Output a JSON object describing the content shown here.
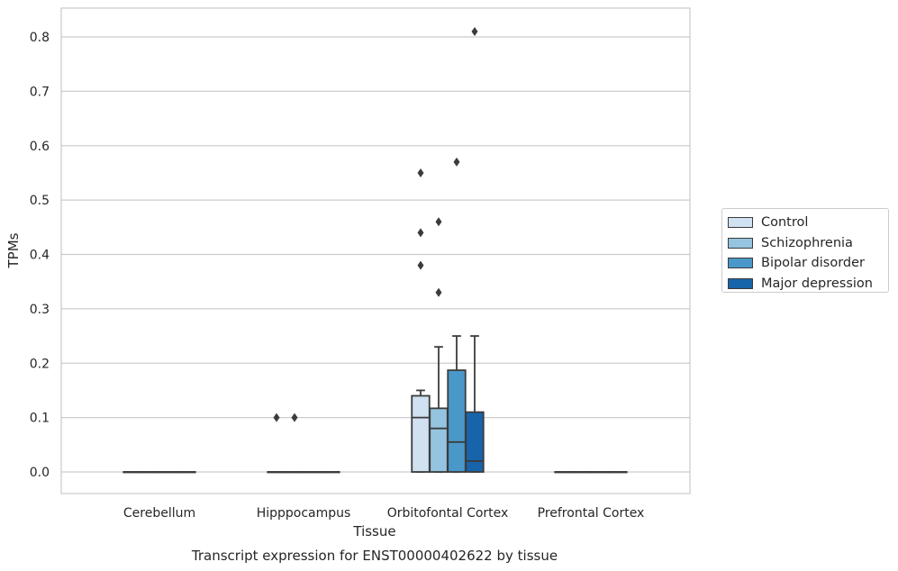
{
  "chart_data": {
    "type": "box",
    "title": "Transcript expression for ENST00000402622 by tissue",
    "xlabel": "Tissue",
    "ylabel": "TPMs",
    "ylim": [
      -0.04,
      0.86
    ],
    "yticks": [
      0.0,
      0.1,
      0.2,
      0.3,
      0.4,
      0.5,
      0.6,
      0.7,
      0.8
    ],
    "ytick_labels": [
      "0.0",
      "0.1",
      "0.2",
      "0.3",
      "0.4",
      "0.5",
      "0.6",
      "0.7",
      "0.8"
    ],
    "categories": [
      "Cerebellum",
      "Hipppocampus",
      "Orbitofontal Cortex",
      "Prefrontal Cortex"
    ],
    "grid": true,
    "legend_position": "right",
    "series": [
      {
        "name": "Control",
        "color": "#d0e1f2",
        "boxes": [
          {
            "min": 0,
            "q1": 0,
            "median": 0,
            "q3": 0,
            "max": 0,
            "outliers": []
          },
          {
            "min": 0,
            "q1": 0,
            "median": 0,
            "q3": 0,
            "max": 0,
            "outliers": [
              0.1
            ]
          },
          {
            "min": 0,
            "q1": 0,
            "median": 0.1,
            "q3": 0.14,
            "max": 0.15,
            "outliers": [
              0.55,
              0.44,
              0.38
            ]
          },
          {
            "min": 0,
            "q1": 0,
            "median": 0,
            "q3": 0,
            "max": 0,
            "outliers": []
          }
        ]
      },
      {
        "name": "Schizophrenia",
        "color": "#94c4df",
        "boxes": [
          {
            "min": 0,
            "q1": 0,
            "median": 0,
            "q3": 0,
            "max": 0,
            "outliers": []
          },
          {
            "min": 0,
            "q1": 0,
            "median": 0,
            "q3": 0,
            "max": 0,
            "outliers": [
              0.1
            ]
          },
          {
            "min": 0,
            "q1": 0,
            "median": 0.08,
            "q3": 0.117,
            "max": 0.23,
            "outliers": [
              0.46,
              0.33
            ]
          },
          {
            "min": 0,
            "q1": 0,
            "median": 0,
            "q3": 0,
            "max": 0,
            "outliers": []
          }
        ]
      },
      {
        "name": "Bipolar disorder",
        "color": "#4a98c9",
        "boxes": [
          {
            "min": 0,
            "q1": 0,
            "median": 0,
            "q3": 0,
            "max": 0,
            "outliers": []
          },
          {
            "min": 0,
            "q1": 0,
            "median": 0,
            "q3": 0,
            "max": 0,
            "outliers": []
          },
          {
            "min": 0,
            "q1": 0,
            "median": 0.055,
            "q3": 0.187,
            "max": 0.25,
            "outliers": [
              0.57
            ]
          },
          {
            "min": 0,
            "q1": 0,
            "median": 0,
            "q3": 0,
            "max": 0,
            "outliers": []
          }
        ]
      },
      {
        "name": "Major depression",
        "color": "#1764ab",
        "boxes": [
          {
            "min": 0,
            "q1": 0,
            "median": 0,
            "q3": 0,
            "max": 0,
            "outliers": []
          },
          {
            "min": 0,
            "q1": 0,
            "median": 0,
            "q3": 0,
            "max": 0,
            "outliers": []
          },
          {
            "min": 0,
            "q1": 0,
            "median": 0.02,
            "q3": 0.11,
            "max": 0.25,
            "outliers": [
              0.81
            ]
          },
          {
            "min": 0,
            "q1": 0,
            "median": 0,
            "q3": 0,
            "max": 0,
            "outliers": []
          }
        ]
      }
    ]
  }
}
